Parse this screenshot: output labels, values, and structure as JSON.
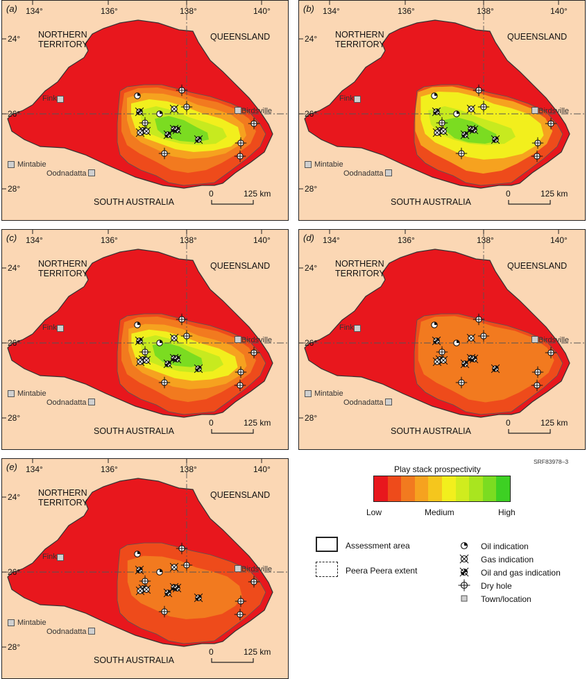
{
  "panels": [
    {
      "id": "a",
      "label": "(a)"
    },
    {
      "id": "b",
      "label": "(b)"
    },
    {
      "id": "c",
      "label": "(c)"
    },
    {
      "id": "d",
      "label": "(d)"
    },
    {
      "id": "e",
      "label": "(e)"
    }
  ],
  "map_labels": {
    "lon": [
      "134°",
      "136°",
      "138°",
      "140°"
    ],
    "lat": [
      "24°",
      "26°",
      "28°"
    ],
    "nt_line1": "NORTHERN",
    "nt_line2": "TERRITORY",
    "qld": "QUEENSLAND",
    "sa": "SOUTH AUSTRALIA",
    "scale_zero": "0",
    "scale_km": "125 km"
  },
  "towns": {
    "finke": "Finke",
    "birdsville": "Birdsville",
    "mintabie": "Mintabie",
    "oodnadatta": "Oodnadatta"
  },
  "figure_code": "SRF83978–3",
  "legend": {
    "title": "Play stack prospectivity",
    "low": "Low",
    "medium": "Medium",
    "high": "High",
    "ramp_colors": [
      "#e8171d",
      "#ee4b1b",
      "#f27a1f",
      "#f6a21f",
      "#f5c61d",
      "#f2ef1d",
      "#d0ec1e",
      "#a9e51f",
      "#7bdc21",
      "#3dd023"
    ],
    "assessment_area": "Assessment area",
    "peera_extent": "Peera Peera extent",
    "oil": "Oil indication",
    "gas": "Gas indication",
    "oil_gas": "Oil and gas indication",
    "dry": "Dry hole",
    "town": "Town/location"
  },
  "colors": {
    "background": "#fbd7b4",
    "low_red": "#e8171d",
    "orange_red": "#ee4b1b",
    "orange": "#f27a1f",
    "amber": "#f6a21f",
    "yellow": "#f2ef1d",
    "yellow_green": "#c7ea1f",
    "green": "#7bdc21"
  }
}
